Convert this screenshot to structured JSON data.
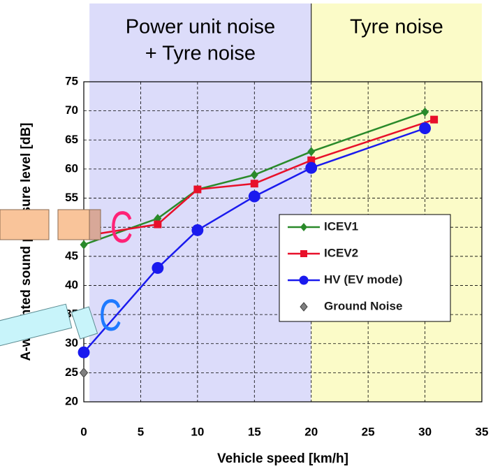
{
  "chart_data": {
    "type": "line",
    "xlabel": "Vehicle speed [km/h]",
    "ylabel": "A-weighted sound pressure level [dB]",
    "xlim": [
      0,
      35
    ],
    "xticks": [
      0,
      5,
      10,
      15,
      20,
      25,
      30,
      35
    ],
    "ylim": [
      20,
      75
    ],
    "yticks": [
      20,
      25,
      30,
      35,
      40,
      45,
      50,
      55,
      60,
      65,
      70,
      75
    ],
    "grid": true,
    "regions": [
      {
        "label": [
          "Power unit noise",
          "+ Tyre noise"
        ],
        "x": [
          0.5,
          20
        ],
        "color": "#dcdcfa"
      },
      {
        "label": [
          "Tyre noise"
        ],
        "x": [
          20,
          35
        ],
        "color": "#fbfbc8"
      }
    ],
    "series": [
      {
        "name": "ICEV1",
        "color": "#2a8a2a",
        "marker": "diamond",
        "x": [
          0,
          6.5,
          10,
          15,
          20,
          30
        ],
        "values": [
          47,
          51.5,
          56.5,
          59,
          63,
          69.8
        ]
      },
      {
        "name": "ICEV2",
        "color": "#e8102a",
        "marker": "square",
        "x": [
          0,
          6.5,
          10,
          15,
          20,
          30.8
        ],
        "values": [
          48.5,
          50.5,
          56.5,
          57.5,
          61.5,
          68.5
        ]
      },
      {
        "name": "HV (EV mode)",
        "color": "#1a1aee",
        "marker": "circle",
        "x": [
          0,
          6.5,
          10,
          15,
          20,
          30
        ],
        "values": [
          28.5,
          43,
          49.5,
          55.3,
          60.2,
          67
        ]
      },
      {
        "name": "Ground Noise",
        "color": "#808080",
        "marker": "diamond",
        "x": [
          0
        ],
        "values": [
          25
        ],
        "line": false
      }
    ],
    "annotations": [
      {
        "text": "C",
        "color": "#ff2277"
      },
      {
        "text": "C",
        "color": "#1e7aff"
      }
    ]
  }
}
